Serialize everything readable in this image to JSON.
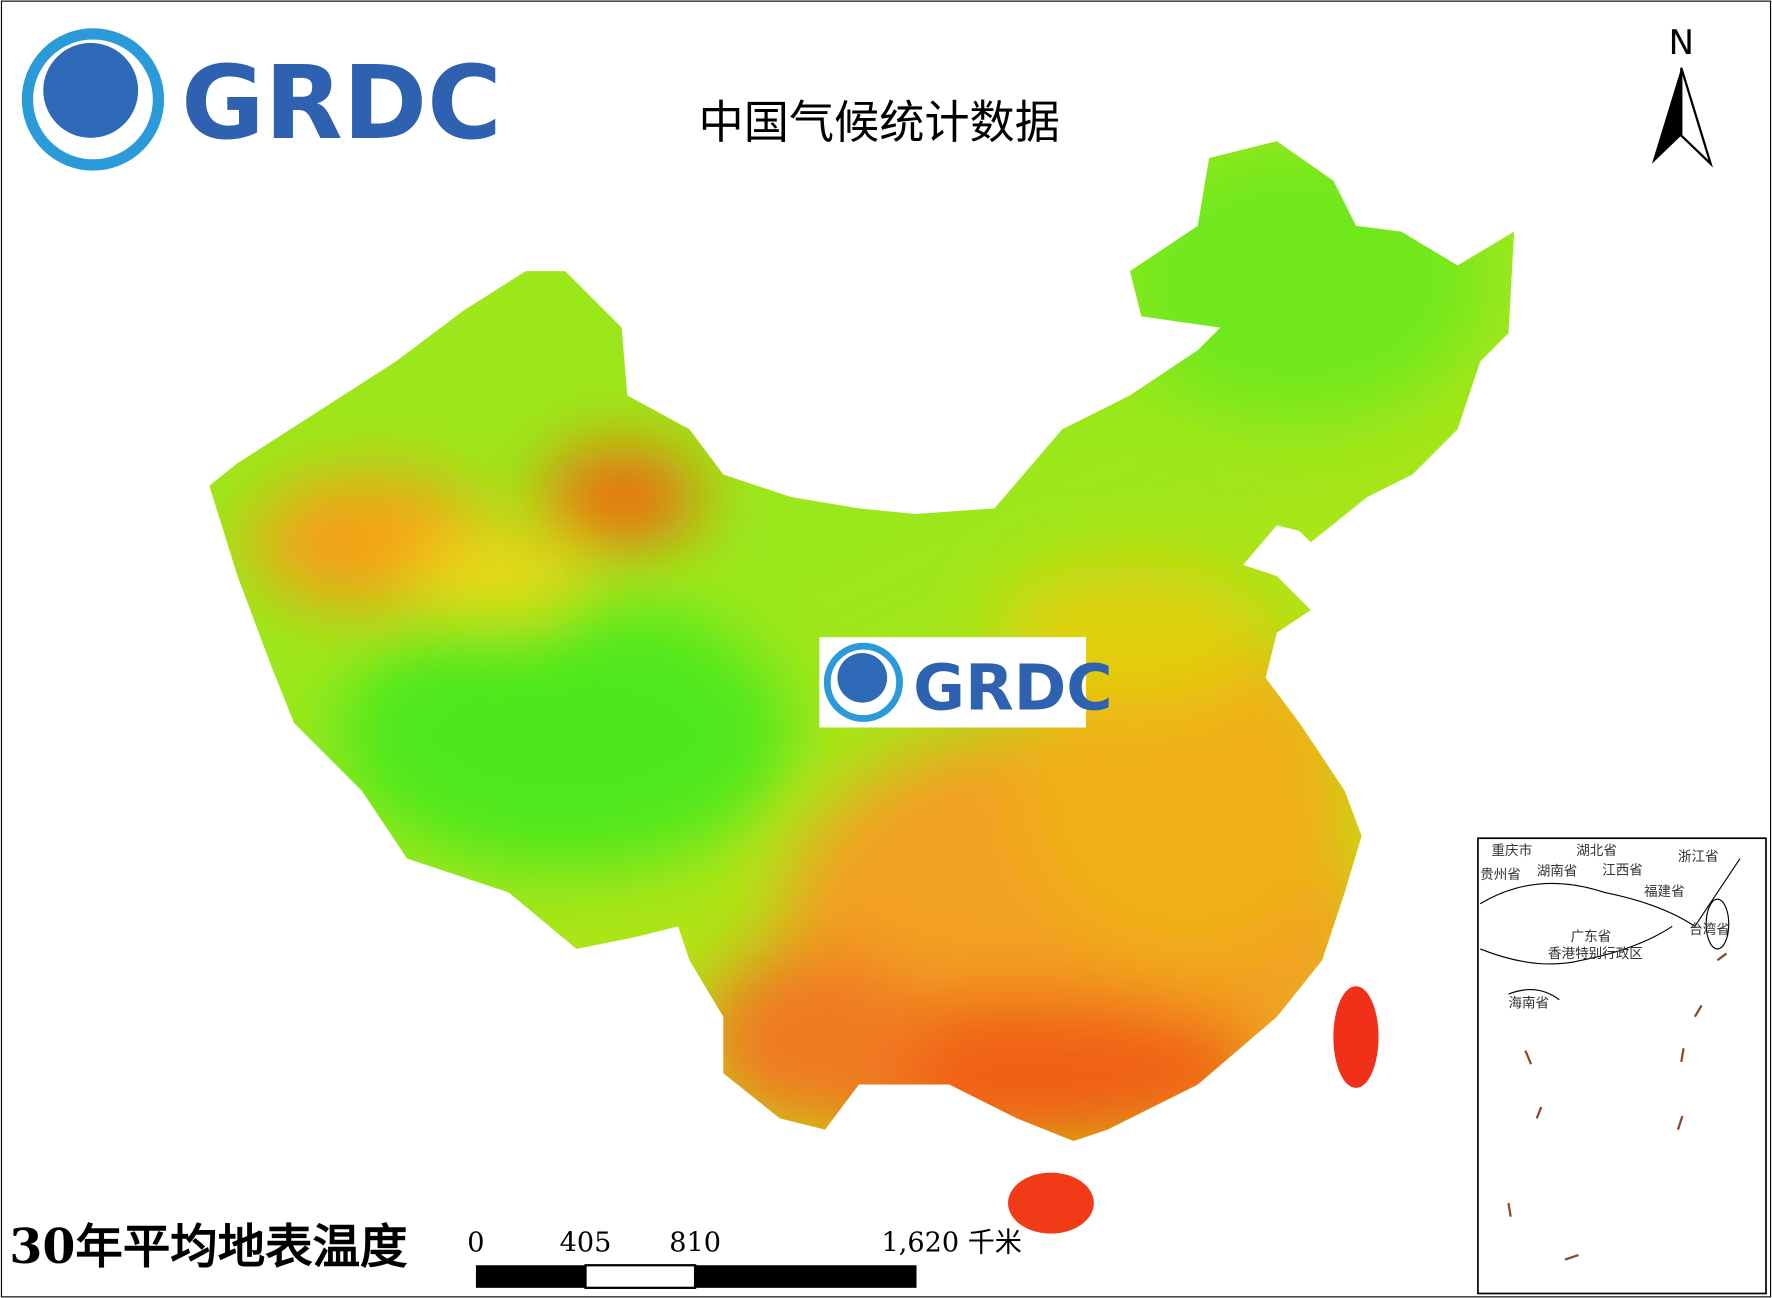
{
  "logo": {
    "text": "GRDC"
  },
  "title": "中国气候统计数据",
  "north_arrow": "N",
  "watermark": "GRDC",
  "map_title": "30年平均地表温度",
  "scale_bar": {
    "labels": [
      "0",
      "405",
      "810",
      "1,620 千米"
    ]
  },
  "inset": {
    "labels": [
      "重庆市",
      "湖北省",
      "浙江省",
      "贵州省",
      "湖南省",
      "江西省",
      "福建省",
      "广东省",
      "台湾省",
      "香港特别行政区",
      "海南省"
    ]
  }
}
